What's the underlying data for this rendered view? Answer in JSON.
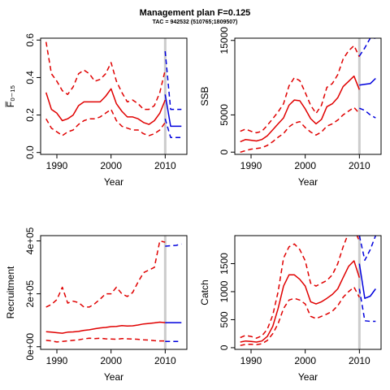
{
  "page": {
    "title": "Management plan F=0.125",
    "subtitle": "TAC = 942532 (510765;1809507)"
  },
  "colors": {
    "historic": "#e00000",
    "projection": "#0000dd",
    "divider": "#cccccc",
    "axis": "#000000"
  },
  "chart_data": [
    {
      "type": "line",
      "ylabel": "F̅₀₋₁₅",
      "xlabel": "Year",
      "xlim": [
        1987,
        2014
      ],
      "ylim": [
        -0.01,
        0.61
      ],
      "xticks": [
        1990,
        2000,
        2010
      ],
      "yticks": [
        0,
        0.2,
        0.4,
        0.6
      ],
      "ytick_labels": [
        "0.0",
        "0.2",
        "0.4",
        "0.6"
      ],
      "divider_x": 2010,
      "series": [
        {
          "role": "historic-median",
          "x": [
            1988,
            1989,
            1990,
            1991,
            1992,
            1993,
            1994,
            1995,
            1996,
            1997,
            1998,
            1999,
            2000,
            2001,
            2002,
            2003,
            2004,
            2005,
            2006,
            2007,
            2008,
            2009,
            2010
          ],
          "values": [
            0.32,
            0.23,
            0.21,
            0.17,
            0.18,
            0.2,
            0.25,
            0.27,
            0.27,
            0.27,
            0.27,
            0.3,
            0.34,
            0.26,
            0.22,
            0.19,
            0.19,
            0.18,
            0.16,
            0.15,
            0.17,
            0.21,
            0.28
          ]
        },
        {
          "role": "historic-upper",
          "x": [
            1988,
            1989,
            1990,
            1991,
            1992,
            1993,
            1994,
            1995,
            1996,
            1997,
            1998,
            1999,
            2000,
            2001,
            2002,
            2003,
            2004,
            2005,
            2006,
            2007,
            2008,
            2009,
            2010
          ],
          "values": [
            0.59,
            0.42,
            0.38,
            0.33,
            0.31,
            0.35,
            0.42,
            0.44,
            0.42,
            0.38,
            0.39,
            0.42,
            0.48,
            0.38,
            0.32,
            0.27,
            0.28,
            0.26,
            0.23,
            0.23,
            0.25,
            0.32,
            0.44
          ]
        },
        {
          "role": "historic-lower",
          "x": [
            1988,
            1989,
            1990,
            1991,
            1992,
            1993,
            1994,
            1995,
            1996,
            1997,
            1998,
            1999,
            2000,
            2001,
            2002,
            2003,
            2004,
            2005,
            2006,
            2007,
            2008,
            2009,
            2010
          ],
          "values": [
            0.18,
            0.13,
            0.11,
            0.09,
            0.11,
            0.12,
            0.15,
            0.17,
            0.18,
            0.18,
            0.19,
            0.21,
            0.23,
            0.17,
            0.14,
            0.13,
            0.12,
            0.12,
            0.1,
            0.09,
            0.1,
            0.12,
            0.16
          ]
        },
        {
          "role": "projection-median",
          "x": [
            2010,
            2011,
            2012,
            2013
          ],
          "values": [
            0.31,
            0.14,
            0.14,
            0.14
          ]
        },
        {
          "role": "projection-upper",
          "x": [
            2010,
            2011,
            2012,
            2013
          ],
          "values": [
            0.54,
            0.23,
            0.23,
            0.23
          ]
        },
        {
          "role": "projection-lower",
          "x": [
            2010,
            2011,
            2012,
            2013
          ],
          "values": [
            0.18,
            0.08,
            0.08,
            0.08
          ]
        }
      ]
    },
    {
      "type": "line",
      "ylabel": "SSB",
      "xlabel": "Year",
      "xlim": [
        1987,
        2014
      ],
      "ylim": [
        -300,
        15300
      ],
      "xticks": [
        1990,
        2000,
        2010
      ],
      "yticks": [
        0,
        5000,
        15000
      ],
      "ytick_labels": [
        "0",
        "5000",
        "15000"
      ],
      "divider_x": 2010,
      "series": [
        {
          "role": "historic-median",
          "x": [
            1988,
            1989,
            1990,
            1991,
            1992,
            1993,
            1994,
            1995,
            1996,
            1997,
            1998,
            1999,
            2000,
            2001,
            2002,
            2003,
            2004,
            2005,
            2006,
            2007,
            2008,
            2009,
            2010
          ],
          "values": [
            1400,
            1700,
            1600,
            1500,
            1700,
            2200,
            3000,
            3800,
            4600,
            6300,
            7000,
            6900,
            5800,
            4500,
            3800,
            4400,
            6100,
            6500,
            7300,
            8800,
            9500,
            10200,
            8400
          ]
        },
        {
          "role": "historic-upper",
          "x": [
            1988,
            1989,
            1990,
            1991,
            1992,
            1993,
            1994,
            1995,
            1996,
            1997,
            1998,
            1999,
            2000,
            2001,
            2002,
            2003,
            2004,
            2005,
            2006,
            2007,
            2008,
            2009,
            2010
          ],
          "values": [
            2800,
            3100,
            2800,
            2600,
            2800,
            3600,
            4500,
            5400,
            6500,
            8900,
            10000,
            9600,
            8000,
            6300,
            5200,
            6300,
            8700,
            9200,
            10400,
            12500,
            13600,
            14300,
            12800
          ]
        },
        {
          "role": "historic-lower",
          "x": [
            1988,
            1989,
            1990,
            1991,
            1992,
            1993,
            1994,
            1995,
            1996,
            1997,
            1998,
            1999,
            2000,
            2001,
            2002,
            2003,
            2004,
            2005,
            2006,
            2007,
            2008,
            2009,
            2010
          ],
          "values": [
            0,
            200,
            400,
            500,
            600,
            900,
            1400,
            2000,
            2500,
            3400,
            3900,
            4100,
            3300,
            2700,
            2300,
            2700,
            3500,
            3800,
            4300,
            5000,
            5500,
            6000,
            5200
          ]
        },
        {
          "role": "projection-median",
          "x": [
            2010,
            2011,
            2012,
            2013
          ],
          "values": [
            9000,
            9100,
            9200,
            9900
          ]
        },
        {
          "role": "projection-upper",
          "x": [
            2010,
            2011,
            2012,
            2013
          ],
          "values": [
            12900,
            14000,
            15300,
            15300
          ]
        },
        {
          "role": "projection-lower",
          "x": [
            2010,
            2011,
            2012,
            2013
          ],
          "values": [
            5900,
            5600,
            5000,
            4600
          ]
        }
      ]
    },
    {
      "type": "line",
      "ylabel": "Recruitment",
      "xlabel": "Year",
      "xlim": [
        1987,
        2014
      ],
      "ylim": [
        -10000,
        420000
      ],
      "xticks": [
        1990,
        2000,
        2010
      ],
      "yticks": [
        0,
        200000,
        400000
      ],
      "ytick_labels": [
        "0e+00",
        "2e+05",
        "4e+05"
      ],
      "divider_x": 2010,
      "series": [
        {
          "role": "historic-median",
          "x": [
            1988,
            1989,
            1990,
            1991,
            1992,
            1993,
            1994,
            1995,
            1996,
            1997,
            1998,
            1999,
            2000,
            2001,
            2002,
            2003,
            2004,
            2005,
            2006,
            2007,
            2008,
            2009,
            2010
          ],
          "values": [
            57000,
            55000,
            53000,
            51000,
            55000,
            56000,
            58000,
            62000,
            64000,
            68000,
            71000,
            73000,
            76000,
            77000,
            80000,
            78000,
            79000,
            82000,
            86000,
            88000,
            90000,
            93000,
            91000
          ]
        },
        {
          "role": "historic-upper",
          "x": [
            1988,
            1989,
            1990,
            1991,
            1992,
            1993,
            1994,
            1995,
            1996,
            1997,
            1998,
            1999,
            2000,
            2001,
            2002,
            2003,
            2004,
            2005,
            2006,
            2007,
            2008,
            2009,
            2010
          ],
          "values": [
            150000,
            160000,
            178000,
            225000,
            165000,
            172000,
            167000,
            150000,
            150000,
            163000,
            180000,
            200000,
            200000,
            225000,
            200000,
            190000,
            205000,
            245000,
            280000,
            290000,
            300000,
            400000,
            395000
          ]
        },
        {
          "role": "historic-lower",
          "x": [
            1988,
            1989,
            1990,
            1991,
            1992,
            1993,
            1994,
            1995,
            1996,
            1997,
            1998,
            1999,
            2000,
            2001,
            2002,
            2003,
            2004,
            2005,
            2006,
            2007,
            2008,
            2009,
            2010
          ],
          "values": [
            24000,
            22000,
            18000,
            20000,
            22000,
            24000,
            26000,
            30000,
            32000,
            31000,
            32000,
            30000,
            29000,
            28000,
            31000,
            30000,
            29000,
            28000,
            26000,
            25000,
            23000,
            22000,
            22000
          ]
        },
        {
          "role": "projection-median",
          "x": [
            2010,
            2011,
            2012,
            2013
          ],
          "values": [
            91000,
            91000,
            91000,
            91000
          ]
        },
        {
          "role": "projection-upper",
          "x": [
            2010,
            2011,
            2012,
            2013
          ],
          "values": [
            380000,
            382000,
            383000,
            388000
          ]
        },
        {
          "role": "projection-lower",
          "x": [
            2010,
            2011,
            2012,
            2013
          ],
          "values": [
            20000,
            20000,
            20000,
            20000
          ]
        }
      ]
    },
    {
      "type": "line",
      "ylabel": "Catch",
      "xlabel": "Year",
      "xlim": [
        1987,
        2014
      ],
      "ylim": [
        -30,
        2000
      ],
      "xticks": [
        1990,
        2000,
        2010
      ],
      "yticks": [
        0,
        500,
        1000,
        1500
      ],
      "ytick_labels": [
        "0",
        "500",
        "1000",
        "1500"
      ],
      "divider_x": 2010,
      "series": [
        {
          "role": "historic-median",
          "x": [
            1988,
            1989,
            1990,
            1991,
            1992,
            1993,
            1994,
            1995,
            1996,
            1997,
            1998,
            1999,
            2000,
            2001,
            2002,
            2003,
            2004,
            2005,
            2006,
            2007,
            2008,
            2009,
            2010
          ],
          "values": [
            100,
            120,
            110,
            100,
            120,
            200,
            380,
            700,
            1100,
            1300,
            1300,
            1220,
            1100,
            820,
            780,
            820,
            880,
            950,
            1050,
            1250,
            1450,
            1550,
            1250
          ]
        },
        {
          "role": "historic-upper",
          "x": [
            1988,
            1989,
            1990,
            1991,
            1992,
            1993,
            1994,
            1995,
            1996,
            1997,
            1998,
            1999,
            2000,
            2001,
            2002,
            2003,
            2004,
            2005,
            2006,
            2007,
            2008,
            2009,
            2010
          ],
          "values": [
            180,
            220,
            200,
            170,
            210,
            330,
            580,
            1000,
            1600,
            1800,
            1850,
            1750,
            1550,
            1150,
            1100,
            1150,
            1200,
            1300,
            1500,
            1800,
            2050,
            2130,
            1900
          ]
        },
        {
          "role": "historic-lower",
          "x": [
            1988,
            1989,
            1990,
            1991,
            1992,
            1993,
            1994,
            1995,
            1996,
            1997,
            1998,
            1999,
            2000,
            2001,
            2002,
            2003,
            2004,
            2005,
            2006,
            2007,
            2008,
            2009,
            2010
          ],
          "values": [
            40,
            60,
            60,
            55,
            70,
            130,
            250,
            430,
            700,
            850,
            880,
            850,
            780,
            560,
            520,
            560,
            600,
            650,
            750,
            900,
            1000,
            1080,
            900
          ]
        },
        {
          "role": "projection-median",
          "x": [
            2010,
            2011,
            2012,
            2013
          ],
          "values": [
            1500,
            880,
            920,
            1050
          ]
        },
        {
          "role": "projection-upper",
          "x": [
            2010,
            2011,
            2012,
            2013
          ],
          "values": [
            2000,
            1560,
            1750,
            2000
          ]
        },
        {
          "role": "projection-lower",
          "x": [
            2010,
            2011,
            2012,
            2013
          ],
          "values": [
            1050,
            480,
            470,
            470
          ]
        }
      ]
    }
  ]
}
